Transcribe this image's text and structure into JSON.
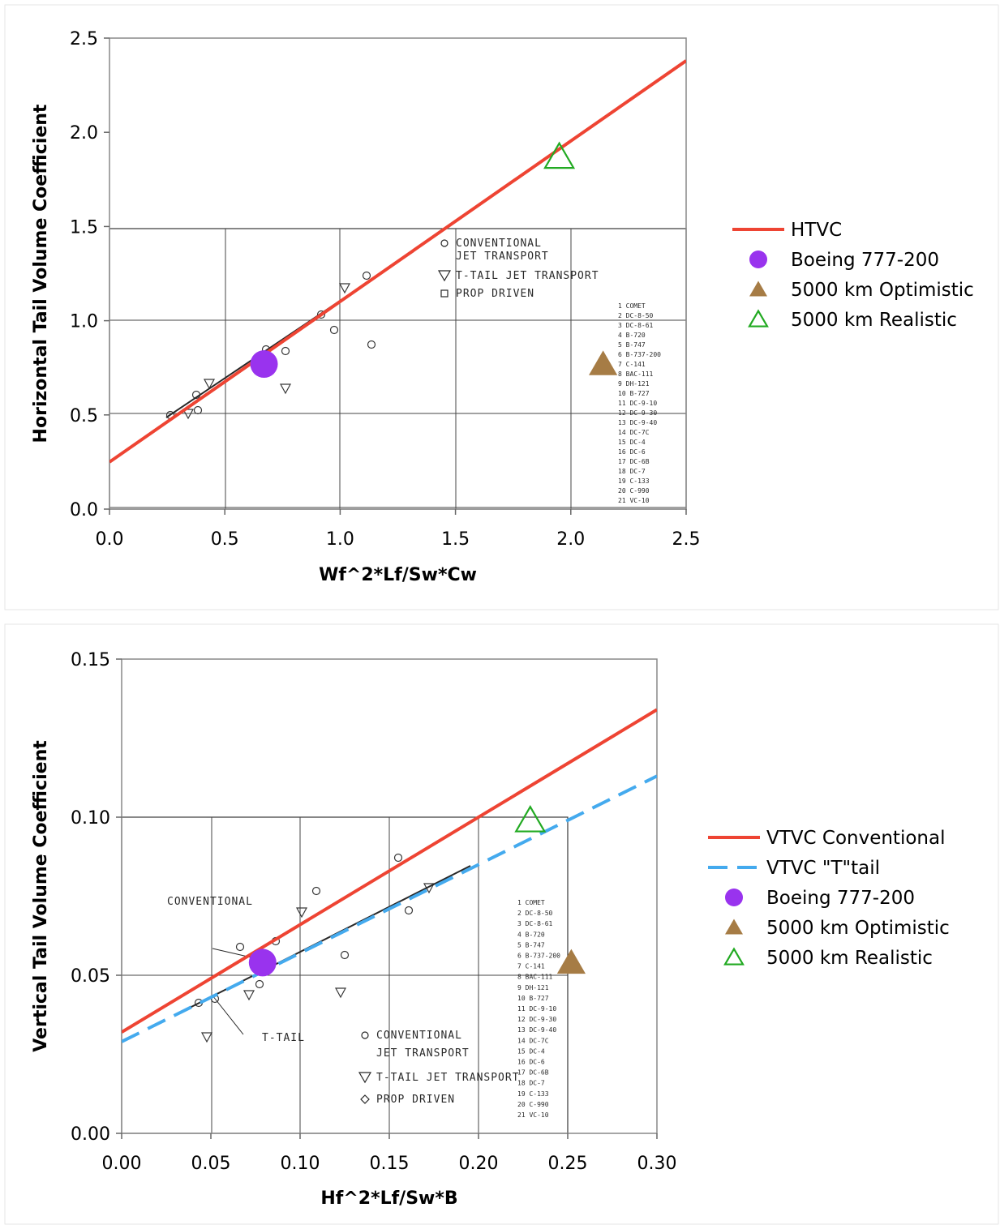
{
  "chart_data": [
    {
      "type": "line",
      "xlabel": "Wf^2*Lf/Sw*Cw",
      "ylabel": "Horizontal Tail Volume Coefficient",
      "xlim": [
        0.0,
        2.5
      ],
      "ylim": [
        0.0,
        2.5
      ],
      "x_ticks": [
        "0.0",
        "0.5",
        "1.0",
        "1.5",
        "2.0",
        "2.5"
      ],
      "y_ticks": [
        "0.0",
        "0.5",
        "1.0",
        "1.5",
        "2.0",
        "2.5"
      ],
      "grid": false,
      "legend_position": "right",
      "series": [
        {
          "name": "HTVC",
          "kind": "line",
          "style": "solid",
          "color": "#ee4433",
          "x": [
            0.0,
            2.5
          ],
          "y": [
            0.25,
            2.38
          ]
        },
        {
          "name": "Boeing 777-200",
          "kind": "marker",
          "marker": "circle",
          "color": "#9933ee",
          "x": [
            0.67
          ],
          "y": [
            0.77
          ]
        },
        {
          "name": "5000 km Optimistic",
          "kind": "marker",
          "marker": "triangle-filled",
          "color": "#a67c45",
          "x": [
            2.14
          ],
          "y": [
            0.77
          ]
        },
        {
          "name": "5000 km Realistic",
          "kind": "marker",
          "marker": "triangle-open",
          "color": "#22aa22",
          "x": [
            1.95
          ],
          "y": [
            1.87
          ]
        }
      ],
      "background_scan": {
        "legend": [
          "CONVENTIONAL",
          "JET TRANSPORT",
          "T-TAIL JET TRANSPORT",
          "PROP DRIVEN"
        ],
        "aircraft": [
          "COMET",
          "DC-8-50",
          "DC-8-61",
          "B-720",
          "B-747",
          "B-737-200",
          "C-141",
          "BAC-111",
          "DH-121",
          "B-727",
          "DC-9-10",
          "DC-9-30",
          "DC-9-40",
          "DC-7C",
          "DC-4",
          "DC-6",
          "DC-6B",
          "DC-7",
          "C-133",
          "C-990",
          "VC-10"
        ]
      }
    },
    {
      "type": "line",
      "xlabel": "Hf^2*Lf/Sw*B",
      "ylabel": "Vertical Tail Volume Coefficient",
      "xlim": [
        0.0,
        0.3
      ],
      "ylim": [
        0.0,
        0.15
      ],
      "x_ticks": [
        "0.00",
        "0.05",
        "0.10",
        "0.15",
        "0.20",
        "0.25",
        "0.30"
      ],
      "y_ticks": [
        "0.00",
        "0.05",
        "0.10",
        "0.15"
      ],
      "grid": false,
      "legend_position": "right",
      "series": [
        {
          "name": "VTVC Conventional",
          "kind": "line",
          "style": "solid",
          "color": "#ee4433",
          "x": [
            0.0,
            0.3
          ],
          "y": [
            0.032,
            0.134
          ]
        },
        {
          "name": "VTVC \"T\"tail",
          "kind": "line",
          "style": "dashed",
          "color": "#44aaee",
          "x": [
            0.0,
            0.3
          ],
          "y": [
            0.029,
            0.113
          ]
        },
        {
          "name": "Boeing 777-200",
          "kind": "marker",
          "marker": "circle",
          "color": "#9933ee",
          "x": [
            0.079
          ],
          "y": [
            0.054
          ]
        },
        {
          "name": "5000 km Optimistic",
          "kind": "marker",
          "marker": "triangle-filled",
          "color": "#a67c45",
          "x": [
            0.252
          ],
          "y": [
            0.054
          ]
        },
        {
          "name": "5000 km Realistic",
          "kind": "marker",
          "marker": "triangle-open",
          "color": "#22aa22",
          "x": [
            0.229
          ],
          "y": [
            0.099
          ]
        }
      ],
      "background_scan": {
        "labels": [
          "CONVENTIONAL",
          "T-TAIL"
        ],
        "legend": [
          "CONVENTIONAL",
          "JET TRANSPORT",
          "T-TAIL JET TRANSPORT",
          "PROP DRIVEN"
        ],
        "aircraft": [
          "COMET",
          "DC-8-50",
          "DC-8-61",
          "B-720",
          "B-747",
          "B-737-200",
          "C-141",
          "BAC-111",
          "DH-121",
          "B-727",
          "DC-9-10",
          "DC-9-30",
          "DC-9-40",
          "DC-7C",
          "DC-4",
          "DC-6",
          "DC-6B",
          "DC-7",
          "C-133",
          "C-990",
          "VC-10"
        ]
      }
    }
  ]
}
